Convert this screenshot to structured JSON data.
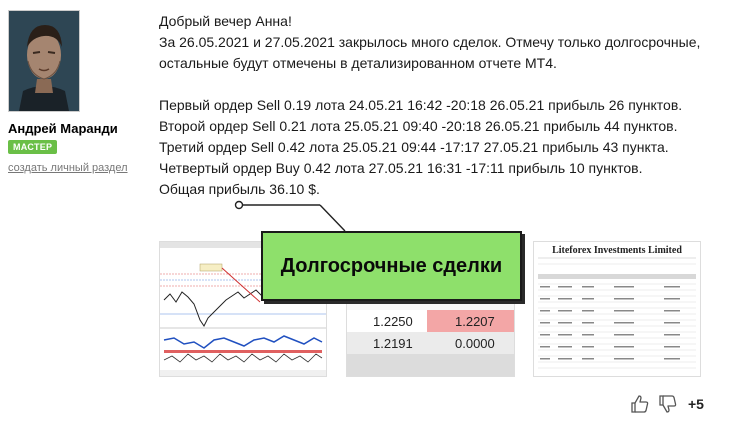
{
  "author": {
    "name": "Андрей Маранди",
    "badge": "МАСТЕР",
    "link": "создать личный раздел"
  },
  "message": {
    "greeting": "Добрый вечер Анна!",
    "lines": [
      "За 26.05.2021 и 27.05.2021 закрылось много сделок. Отмечу только долгосрочные,",
      "остальные будут отмечены в детализированном отчете МТ4."
    ],
    "orders": [
      "Первый ордер Sell 0.19 лота 24.05.21 16:42 -20:18 26.05.21 прибыль 26 пунктов.",
      "Второй ордер Sell 0.21 лота 25.05.21 09:40 -20:18 26.05.21 прибыль 44 пунктов.",
      "Третий ордер Sell 0.42 лота 25.05.21 09:44 -17:17 27.05.21 прибыль 43 пункта.",
      "Четвертый ордер Buy 0.42 лота 27.05.21 16:31 -17:11 прибыль 10 пунктов."
    ],
    "total": "Общая прибыль 36.10 $."
  },
  "callout": {
    "text": "Долгосрочные сделки"
  },
  "thumbnails": {
    "quotes": [
      {
        "bid": "1.2250",
        "ask": "1.2207"
      },
      {
        "bid": "1.2191",
        "ask": "0.0000"
      }
    ],
    "report_title": "Liteforex Investments Limited"
  },
  "reactions": {
    "score": "+5"
  }
}
